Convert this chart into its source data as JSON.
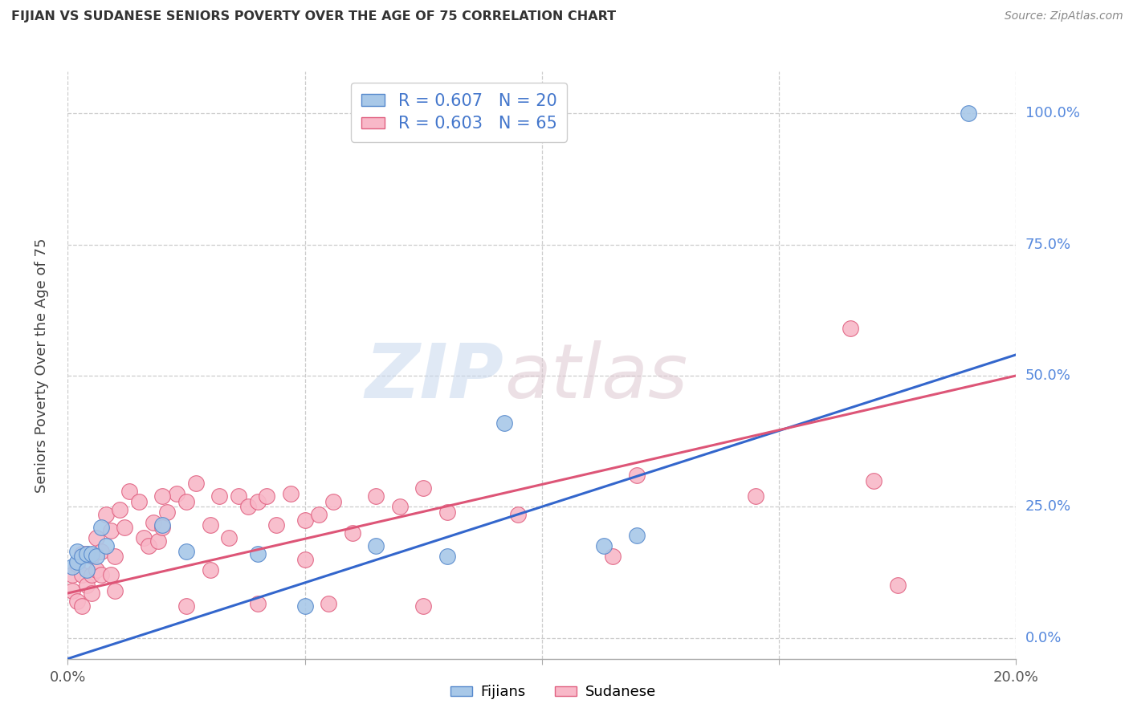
{
  "title": "FIJIAN VS SUDANESE SENIORS POVERTY OVER THE AGE OF 75 CORRELATION CHART",
  "source": "Source: ZipAtlas.com",
  "ylabel": "Seniors Poverty Over the Age of 75",
  "fijian_color": "#a8c8e8",
  "sudanese_color": "#f8b8c8",
  "fijian_edge_color": "#5588cc",
  "sudanese_edge_color": "#e06080",
  "fijian_line_color": "#3366cc",
  "sudanese_line_color": "#dd5577",
  "legend_label_fijian": "R = 0.607   N = 20",
  "legend_label_sudanese": "R = 0.603   N = 65",
  "ytick_vals": [
    0.0,
    0.25,
    0.5,
    0.75,
    1.0
  ],
  "ytick_labels": [
    "0.0%",
    "25.0%",
    "50.0%",
    "75.0%",
    "100.0%"
  ],
  "xtick_vals": [
    0.0,
    0.05,
    0.1,
    0.15,
    0.2
  ],
  "xtick_labels": [
    "0.0%",
    "",
    "",
    "",
    "20.0%"
  ],
  "xlim": [
    0.0,
    0.2
  ],
  "ylim": [
    -0.04,
    1.08
  ],
  "fij_line_x0": 0.0,
  "fij_line_y0": -0.04,
  "fij_line_x1": 0.2,
  "fij_line_y1": 0.54,
  "sud_line_x0": 0.0,
  "sud_line_y0": 0.085,
  "sud_line_x1": 0.2,
  "sud_line_y1": 0.5,
  "fijian_x": [
    0.001,
    0.002,
    0.002,
    0.003,
    0.004,
    0.004,
    0.005,
    0.006,
    0.007,
    0.008,
    0.02,
    0.025,
    0.04,
    0.05,
    0.065,
    0.08,
    0.092,
    0.113,
    0.12,
    0.19
  ],
  "fijian_y": [
    0.135,
    0.145,
    0.165,
    0.155,
    0.13,
    0.16,
    0.16,
    0.155,
    0.21,
    0.175,
    0.215,
    0.165,
    0.16,
    0.06,
    0.175,
    0.155,
    0.41,
    0.175,
    0.195,
    1.0
  ],
  "sudanese_x": [
    0.001,
    0.001,
    0.002,
    0.002,
    0.003,
    0.003,
    0.003,
    0.004,
    0.004,
    0.005,
    0.005,
    0.005,
    0.006,
    0.006,
    0.007,
    0.007,
    0.008,
    0.009,
    0.009,
    0.01,
    0.01,
    0.011,
    0.012,
    0.013,
    0.015,
    0.016,
    0.017,
    0.018,
    0.019,
    0.02,
    0.021,
    0.023,
    0.025,
    0.027,
    0.03,
    0.032,
    0.034,
    0.036,
    0.038,
    0.04,
    0.042,
    0.044,
    0.047,
    0.05,
    0.053,
    0.056,
    0.06,
    0.065,
    0.07,
    0.075,
    0.025,
    0.04,
    0.055,
    0.075,
    0.095,
    0.12,
    0.145,
    0.17,
    0.02,
    0.03,
    0.05,
    0.08,
    0.115,
    0.165,
    0.175
  ],
  "sudanese_y": [
    0.12,
    0.09,
    0.14,
    0.07,
    0.16,
    0.12,
    0.06,
    0.16,
    0.1,
    0.155,
    0.12,
    0.085,
    0.19,
    0.13,
    0.165,
    0.12,
    0.235,
    0.205,
    0.12,
    0.155,
    0.09,
    0.245,
    0.21,
    0.28,
    0.26,
    0.19,
    0.175,
    0.22,
    0.185,
    0.21,
    0.24,
    0.275,
    0.26,
    0.295,
    0.215,
    0.27,
    0.19,
    0.27,
    0.25,
    0.26,
    0.27,
    0.215,
    0.275,
    0.225,
    0.235,
    0.26,
    0.2,
    0.27,
    0.25,
    0.285,
    0.06,
    0.065,
    0.065,
    0.06,
    0.235,
    0.31,
    0.27,
    0.3,
    0.27,
    0.13,
    0.15,
    0.24,
    0.155,
    0.59,
    0.1
  ]
}
